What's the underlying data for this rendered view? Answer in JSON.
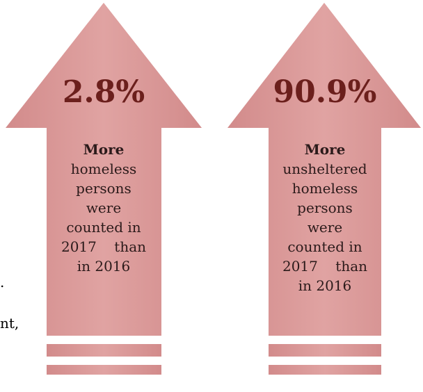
{
  "arrows": [
    {
      "percent": "2.8%",
      "heading": "More",
      "lines": [
        "homeless",
        "persons",
        "were",
        "counted in",
        "2017    than",
        "in 2016"
      ]
    },
    {
      "percent": "90.9%",
      "heading": "More",
      "lines": [
        "unsheltered",
        "homeless",
        "persons",
        "were",
        "counted in",
        "2017    than",
        "in 2016"
      ]
    }
  ],
  "edge_fragments": [
    ".",
    "nt,"
  ],
  "colors": {
    "arrow_fill": "#d89696",
    "arrow_fill_light": "#e3aaa9",
    "percent_text": "#6b1f1c"
  }
}
